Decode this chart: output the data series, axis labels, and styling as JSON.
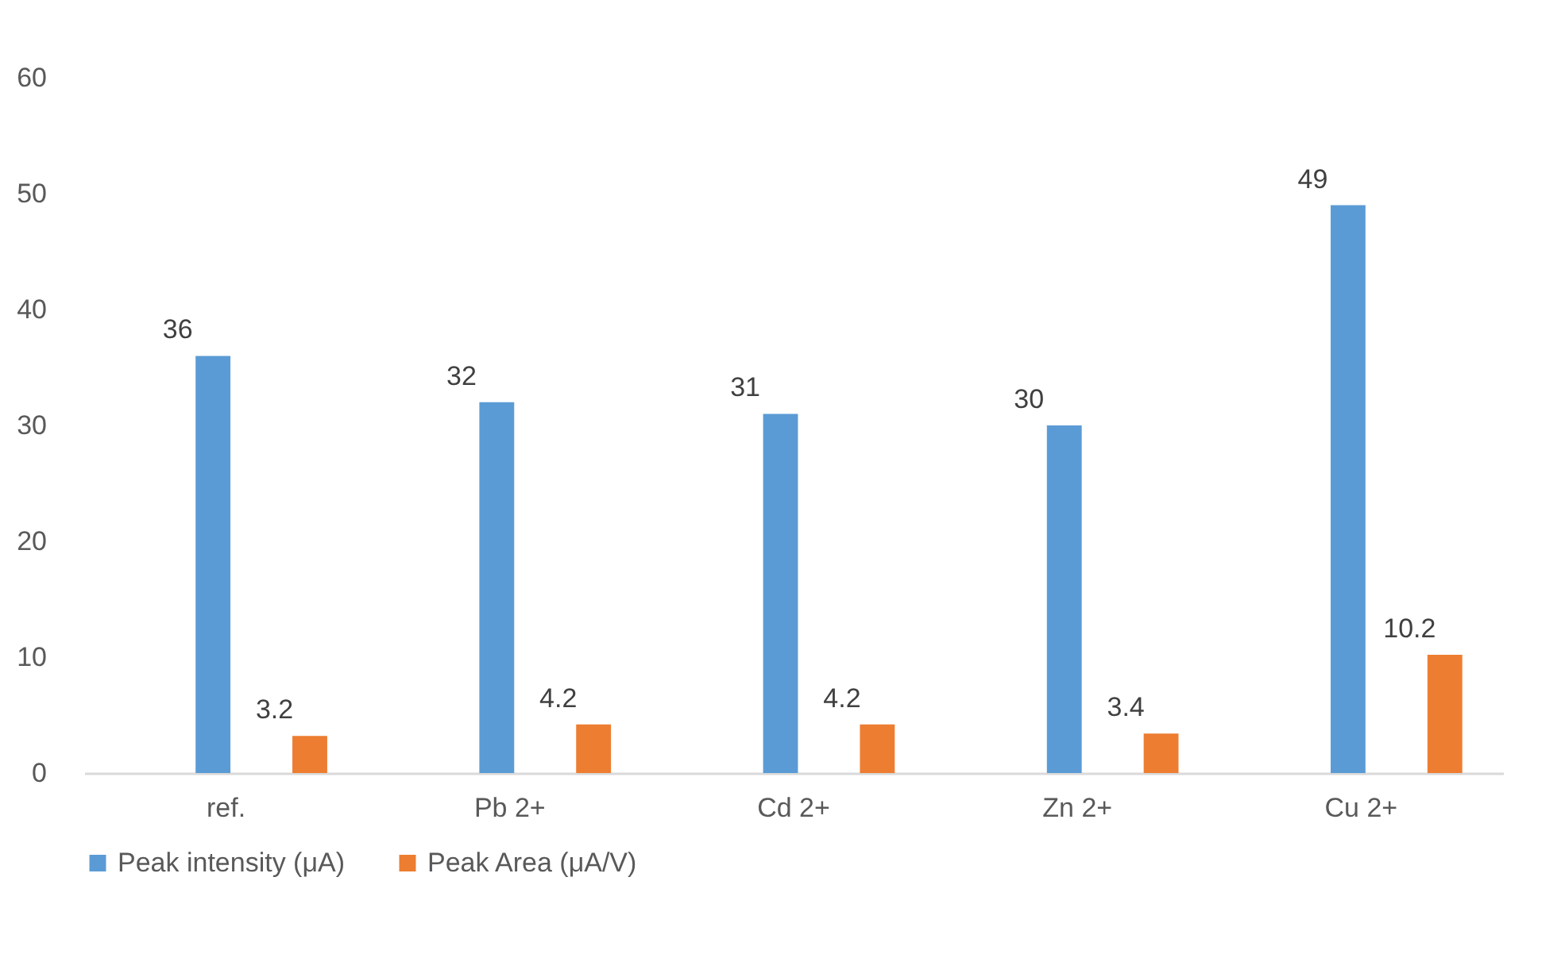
{
  "chart_data": {
    "type": "bar",
    "categories": [
      "ref.",
      "Pb 2+",
      "Cd 2+",
      "Zn 2+",
      "Cu 2+"
    ],
    "series": [
      {
        "name": "Peak intensity (μA)",
        "color": "#5b9bd5",
        "values": [
          36,
          32,
          31,
          30,
          49
        ]
      },
      {
        "name": "Peak Area (μA/V)",
        "color": "#ed7d31",
        "values": [
          3.2,
          4.2,
          4.2,
          3.4,
          10.2
        ]
      }
    ],
    "ylim": [
      0,
      60
    ],
    "yticks": [
      0,
      10,
      20,
      30,
      40,
      50,
      60
    ],
    "grid": false,
    "legend": "bottom",
    "data_labels": true
  }
}
